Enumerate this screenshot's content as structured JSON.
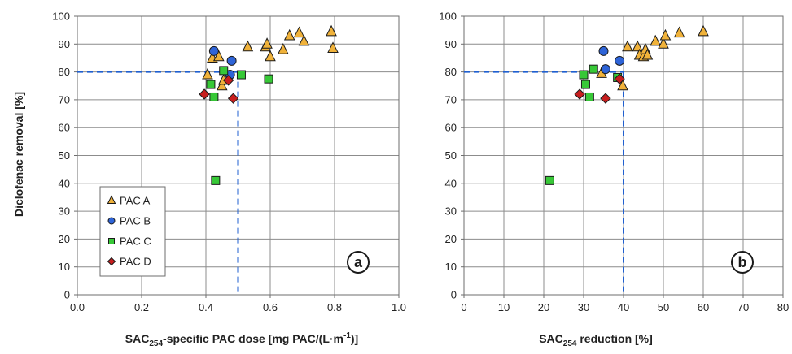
{
  "figure": {
    "y_label": "Diclofenac removal [%]"
  },
  "chart_data": [
    {
      "type": "scatter",
      "panel_label": "a",
      "xlabel": {
        "main": "SAC",
        "sub": "254",
        "rest": "-specific PAC dose [mg PAC/(L·m",
        "sup": "-1",
        "end": ")]"
      },
      "ylabel": "Diclofenac removal [%]",
      "xlim": [
        0,
        1.0
      ],
      "ylim": [
        0,
        100
      ],
      "x_ticks": [
        0,
        0.2,
        0.4,
        0.6,
        0.8,
        1.0
      ],
      "x_tick_labels": [
        "0.0",
        "0.2",
        "0.4",
        "0.6",
        "0.8",
        "1.0"
      ],
      "y_ticks": [
        0,
        10,
        20,
        30,
        40,
        50,
        60,
        70,
        80,
        90,
        100
      ],
      "y_tick_labels": [
        "0",
        "10",
        "20",
        "30",
        "40",
        "50",
        "60",
        "70",
        "80",
        "90",
        "100"
      ],
      "grid": true,
      "legend": {
        "placement": "bottom-left",
        "entries": [
          "PAC A",
          "PAC B",
          "PAC C",
          "PAC D"
        ]
      },
      "reference_lines": {
        "y": 80,
        "x": 0.5,
        "style": "dashed",
        "color": "#1f5fd0"
      },
      "series": [
        {
          "name": "PAC A",
          "marker": "triangle",
          "color": "#f0b23a",
          "points": [
            [
              0.405,
              79
            ],
            [
              0.42,
              85
            ],
            [
              0.44,
              85.5
            ],
            [
              0.45,
              75
            ],
            [
              0.455,
              77
            ],
            [
              0.53,
              89
            ],
            [
              0.585,
              89
            ],
            [
              0.59,
              90
            ],
            [
              0.6,
              85.5
            ],
            [
              0.64,
              88
            ],
            [
              0.66,
              93
            ],
            [
              0.69,
              94
            ],
            [
              0.705,
              91
            ],
            [
              0.79,
              94.5
            ],
            [
              0.795,
              88.5
            ]
          ]
        },
        {
          "name": "PAC B",
          "marker": "circle",
          "color": "#2e64d8",
          "points": [
            [
              0.425,
              87.5
            ],
            [
              0.475,
              79
            ],
            [
              0.48,
              84
            ]
          ]
        },
        {
          "name": "PAC C",
          "marker": "square",
          "color": "#37c837",
          "points": [
            [
              0.415,
              75.5
            ],
            [
              0.425,
              71
            ],
            [
              0.43,
              41
            ],
            [
              0.455,
              80.5
            ],
            [
              0.51,
              79
            ],
            [
              0.595,
              77.5
            ]
          ]
        },
        {
          "name": "PAC D",
          "marker": "diamond",
          "color": "#c81e1e",
          "points": [
            [
              0.395,
              72
            ],
            [
              0.47,
              77
            ],
            [
              0.485,
              70.5
            ]
          ]
        }
      ]
    },
    {
      "type": "scatter",
      "panel_label": "b",
      "xlabel": {
        "main": "SAC",
        "sub": "254",
        "rest": " reduction [%]",
        "sup": "",
        "end": ""
      },
      "ylabel": "",
      "xlim": [
        0,
        80
      ],
      "ylim": [
        0,
        100
      ],
      "x_ticks": [
        0,
        10,
        20,
        30,
        40,
        50,
        60,
        70,
        80
      ],
      "x_tick_labels": [
        "0",
        "10",
        "20",
        "30",
        "40",
        "50",
        "60",
        "70",
        "80"
      ],
      "y_ticks": [
        0,
        10,
        20,
        30,
        40,
        50,
        60,
        70,
        80,
        90,
        100
      ],
      "y_tick_labels": [
        "0",
        "10",
        "20",
        "30",
        "40",
        "50",
        "60",
        "70",
        "80",
        "90",
        "100"
      ],
      "grid": true,
      "reference_lines": {
        "y": 80,
        "x": 40,
        "style": "dashed",
        "color": "#1f5fd0"
      },
      "series": [
        {
          "name": "PAC A",
          "marker": "triangle",
          "color": "#f0b23a",
          "points": [
            [
              34.5,
              79.5
            ],
            [
              39.8,
              75
            ],
            [
              41,
              89
            ],
            [
              43.5,
              89
            ],
            [
              44,
              86
            ],
            [
              45,
              85.5
            ],
            [
              45.5,
              88
            ],
            [
              46,
              86
            ],
            [
              48,
              91
            ],
            [
              50,
              90
            ],
            [
              50.5,
              93
            ],
            [
              54,
              94
            ],
            [
              60,
              94.5
            ]
          ]
        },
        {
          "name": "PAC B",
          "marker": "circle",
          "color": "#2e64d8",
          "points": [
            [
              35,
              87.5
            ],
            [
              35.5,
              81
            ],
            [
              39,
              84
            ]
          ]
        },
        {
          "name": "PAC C",
          "marker": "square",
          "color": "#37c837",
          "points": [
            [
              21.5,
              41
            ],
            [
              30,
              79
            ],
            [
              30.5,
              75.5
            ],
            [
              31.5,
              71
            ],
            [
              32.5,
              81
            ],
            [
              38.5,
              78
            ]
          ]
        },
        {
          "name": "PAC D",
          "marker": "diamond",
          "color": "#c81e1e",
          "points": [
            [
              29,
              72
            ],
            [
              35.5,
              70.5
            ],
            [
              39,
              77.5
            ]
          ]
        }
      ]
    }
  ]
}
